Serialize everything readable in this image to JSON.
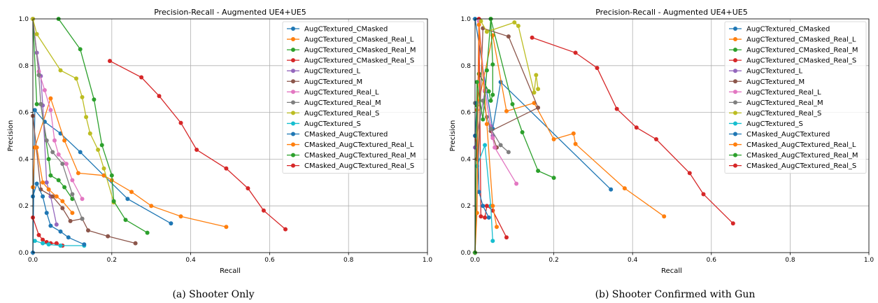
{
  "chart_data": [
    {
      "type": "line",
      "title": "Precision-Recall - Augmented UE4+UE5",
      "xlabel": "Recall",
      "ylabel": "Precision",
      "xlim": [
        0,
        1
      ],
      "ylim": [
        0,
        1
      ],
      "xticks": [
        "0.0",
        "0.2",
        "0.4",
        "0.6",
        "0.8",
        "1.0"
      ],
      "yticks": [
        "0.0",
        "0.2",
        "0.4",
        "0.6",
        "0.8",
        "1.0"
      ],
      "grid": true,
      "legend_position": "top-right",
      "caption": "(a)  Shooter Only",
      "series": [
        {
          "name": "AugCTextured_CMasked",
          "color": "#1f77b4",
          "points": [
            [
              0.0,
              0.0
            ],
            [
              0.005,
              0.61
            ],
            [
              0.03,
              0.56
            ],
            [
              0.07,
              0.51
            ],
            [
              0.12,
              0.43
            ],
            [
              0.18,
              0.33
            ],
            [
              0.24,
              0.23
            ],
            [
              0.35,
              0.125
            ]
          ]
        },
        {
          "name": "AugCTextured_CMasked_Real_L",
          "color": "#ff7f0e",
          "points": [
            [
              0.0,
              0.28
            ],
            [
              0.005,
              0.45
            ],
            [
              0.045,
              0.66
            ],
            [
              0.08,
              0.48
            ],
            [
              0.115,
              0.34
            ],
            [
              0.18,
              0.33
            ],
            [
              0.2,
              0.31
            ],
            [
              0.25,
              0.26
            ],
            [
              0.3,
              0.2
            ],
            [
              0.375,
              0.155
            ],
            [
              0.49,
              0.11
            ]
          ]
        },
        {
          "name": "AugCTextured_CMasked_Real_M",
          "color": "#2ca02c",
          "points": [
            [
              0.0,
              1.0
            ],
            [
              0.01,
              0.635
            ],
            [
              0.02,
              0.635
            ],
            [
              0.04,
              0.4
            ],
            [
              0.045,
              0.33
            ],
            [
              0.065,
              0.31
            ],
            [
              0.08,
              0.28
            ],
            [
              0.1,
              0.23
            ]
          ]
        },
        {
          "name": "AugCTextured_CMasked_Real_S",
          "color": "#d62728",
          "points": [
            [
              0.0,
              0.15
            ],
            [
              0.015,
              0.075
            ],
            [
              0.025,
              0.055
            ],
            [
              0.035,
              0.045
            ],
            [
              0.045,
              0.04
            ],
            [
              0.06,
              0.04
            ],
            [
              0.075,
              0.03
            ]
          ]
        },
        {
          "name": "AugCTextured_L",
          "color": "#9467bd",
          "points": [
            [
              0.0,
              1.0
            ],
            [
              0.01,
              0.855
            ],
            [
              0.02,
              0.755
            ],
            [
              0.025,
              0.63
            ],
            [
              0.035,
              0.3
            ],
            [
              0.045,
              0.24
            ],
            [
              0.06,
              0.12
            ]
          ]
        },
        {
          "name": "AugCTextured_M",
          "color": "#8c564b",
          "points": [
            [
              0.0,
              0.585
            ],
            [
              0.02,
              0.27
            ],
            [
              0.05,
              0.24
            ],
            [
              0.075,
              0.19
            ],
            [
              0.095,
              0.135
            ],
            [
              0.125,
              0.145
            ],
            [
              0.14,
              0.095
            ],
            [
              0.19,
              0.07
            ],
            [
              0.26,
              0.04
            ]
          ]
        },
        {
          "name": "AugCTextured_Real_L",
          "color": "#e377c2",
          "points": [
            [
              0.0,
              1.0
            ],
            [
              0.015,
              0.775
            ],
            [
              0.03,
              0.695
            ],
            [
              0.045,
              0.61
            ],
            [
              0.055,
              0.48
            ],
            [
              0.065,
              0.42
            ],
            [
              0.085,
              0.38
            ],
            [
              0.1,
              0.31
            ],
            [
              0.125,
              0.23
            ]
          ]
        },
        {
          "name": "AugCTextured_Real_M",
          "color": "#7f7f7f",
          "points": [
            [
              0.0,
              1.0
            ],
            [
              0.015,
              0.76
            ],
            [
              0.02,
              0.635
            ],
            [
              0.035,
              0.48
            ],
            [
              0.05,
              0.43
            ],
            [
              0.075,
              0.38
            ],
            [
              0.1,
              0.25
            ],
            [
              0.125,
              0.145
            ]
          ]
        },
        {
          "name": "AugCTextured_Real_S",
          "color": "#bcbd22",
          "points": [
            [
              0.0,
              1.0
            ],
            [
              0.01,
              0.935
            ],
            [
              0.07,
              0.78
            ],
            [
              0.11,
              0.745
            ],
            [
              0.125,
              0.665
            ],
            [
              0.135,
              0.58
            ],
            [
              0.145,
              0.51
            ],
            [
              0.165,
              0.44
            ],
            [
              0.18,
              0.36
            ],
            [
              0.205,
              0.215
            ]
          ]
        },
        {
          "name": "AugCTextured_S",
          "color": "#17becf",
          "points": [
            [
              0.005,
              0.05
            ],
            [
              0.025,
              0.04
            ],
            [
              0.04,
              0.035
            ],
            [
              0.07,
              0.03
            ],
            [
              0.13,
              0.03
            ]
          ]
        },
        {
          "name": "CMasked_AugCTextured",
          "color": "#1f77b4",
          "points": [
            [
              0.0,
              0.24
            ],
            [
              0.01,
              0.295
            ],
            [
              0.025,
              0.24
            ],
            [
              0.035,
              0.17
            ],
            [
              0.045,
              0.115
            ],
            [
              0.07,
              0.09
            ],
            [
              0.09,
              0.065
            ],
            [
              0.13,
              0.035
            ]
          ]
        },
        {
          "name": "CMasked_AugCTextured_Real_L",
          "color": "#ff7f0e",
          "points": [
            [
              0.01,
              0.45
            ],
            [
              0.025,
              0.3
            ],
            [
              0.04,
              0.27
            ],
            [
              0.06,
              0.24
            ],
            [
              0.075,
              0.22
            ],
            [
              0.1,
              0.17
            ]
          ]
        },
        {
          "name": "CMasked_AugCTextured_Real_M",
          "color": "#2ca02c",
          "points": [
            [
              0.065,
              1.0
            ],
            [
              0.12,
              0.87
            ],
            [
              0.155,
              0.655
            ],
            [
              0.175,
              0.46
            ],
            [
              0.2,
              0.33
            ],
            [
              0.205,
              0.22
            ],
            [
              0.235,
              0.14
            ],
            [
              0.29,
              0.085
            ]
          ]
        },
        {
          "name": "CMasked_AugCTextured_Real_S",
          "color": "#d62728",
          "points": [
            [
              0.195,
              0.82
            ],
            [
              0.275,
              0.75
            ],
            [
              0.32,
              0.67
            ],
            [
              0.375,
              0.555
            ],
            [
              0.415,
              0.44
            ],
            [
              0.49,
              0.36
            ],
            [
              0.545,
              0.275
            ],
            [
              0.585,
              0.18
            ],
            [
              0.64,
              0.1
            ]
          ]
        }
      ]
    },
    {
      "type": "line",
      "title": "Precision-Recall - Augmented UE4+UE5",
      "xlabel": "Recall",
      "ylabel": "Precision",
      "xlim": [
        0,
        1
      ],
      "ylim": [
        0,
        1
      ],
      "xticks": [
        "0.0",
        "0.2",
        "0.4",
        "0.6",
        "0.8",
        "1.0"
      ],
      "yticks": [
        "0.0",
        "0.2",
        "0.4",
        "0.6",
        "0.8",
        "1.0"
      ],
      "grid": true,
      "legend_position": "top-right",
      "caption": "(b)  Shooter Confirmed with Gun",
      "series": [
        {
          "name": "AugCTextured_CMasked",
          "color": "#1f77b4",
          "points": [
            [
              0.0,
              1.0
            ],
            [
              0.045,
              0.53
            ],
            [
              0.065,
              0.73
            ],
            [
              0.345,
              0.27
            ]
          ]
        },
        {
          "name": "AugCTextured_CMasked_Real_L",
          "color": "#ff7f0e",
          "points": [
            [
              0.0,
              0.0
            ],
            [
              0.005,
              0.61
            ],
            [
              0.045,
              0.93
            ],
            [
              0.08,
              0.605
            ],
            [
              0.15,
              0.64
            ],
            [
              0.2,
              0.485
            ],
            [
              0.25,
              0.51
            ],
            [
              0.255,
              0.465
            ],
            [
              0.38,
              0.275
            ],
            [
              0.48,
              0.155
            ]
          ]
        },
        {
          "name": "AugCTextured_CMasked_Real_M",
          "color": "#2ca02c",
          "points": [
            [
              0.005,
              0.63
            ],
            [
              0.01,
              0.765
            ],
            [
              0.035,
              0.69
            ],
            [
              0.04,
              0.65
            ],
            [
              0.045,
              0.675
            ],
            [
              0.045,
              0.805
            ],
            [
              0.04,
              1.0
            ],
            [
              0.095,
              0.635
            ],
            [
              0.12,
              0.515
            ],
            [
              0.16,
              0.35
            ],
            [
              0.2,
              0.32
            ]
          ]
        },
        {
          "name": "AugCTextured_CMasked_Real_S",
          "color": "#d62728",
          "points": [
            [
              0.0,
              0.5
            ],
            [
              0.005,
              0.4
            ],
            [
              0.01,
              1.0
            ],
            [
              0.015,
              0.155
            ],
            [
              0.025,
              0.15
            ],
            [
              0.03,
              0.2
            ],
            [
              0.045,
              0.18
            ],
            [
              0.08,
              0.065
            ]
          ]
        },
        {
          "name": "AugCTextured_L",
          "color": "#9467bd",
          "points": [
            [
              0.0,
              0.45
            ],
            [
              0.025,
              0.69
            ],
            [
              0.04,
              0.54
            ],
            [
              0.045,
              0.5
            ]
          ]
        },
        {
          "name": "AugCTextured_M",
          "color": "#8c564b",
          "points": [
            [
              0.0,
              0.0
            ],
            [
              0.02,
              0.96
            ],
            [
              0.085,
              0.925
            ],
            [
              0.16,
              0.62
            ],
            [
              0.04,
              0.52
            ],
            [
              0.055,
              0.45
            ]
          ]
        },
        {
          "name": "AugCTextured_Real_L",
          "color": "#e377c2",
          "points": [
            [
              0.01,
              0.99
            ],
            [
              0.025,
              0.695
            ],
            [
              0.045,
              0.49
            ],
            [
              0.05,
              0.45
            ],
            [
              0.105,
              0.295
            ]
          ]
        },
        {
          "name": "AugCTextured_Real_M",
          "color": "#7f7f7f",
          "points": [
            [
              0.0,
              0.64
            ],
            [
              0.02,
              0.65
            ],
            [
              0.03,
              0.58
            ],
            [
              0.04,
              0.53
            ],
            [
              0.065,
              0.46
            ],
            [
              0.085,
              0.43
            ]
          ]
        },
        {
          "name": "AugCTextured_Real_S",
          "color": "#bcbd22",
          "points": [
            [
              0.015,
              0.99
            ],
            [
              0.03,
              0.945
            ],
            [
              0.1,
              0.985
            ],
            [
              0.11,
              0.97
            ],
            [
              0.15,
              0.685
            ],
            [
              0.155,
              0.76
            ],
            [
              0.16,
              0.7
            ]
          ]
        },
        {
          "name": "AugCTextured_S",
          "color": "#17becf",
          "points": [
            [
              0.005,
              0.37
            ],
            [
              0.025,
              0.46
            ],
            [
              0.04,
              0.2
            ],
            [
              0.045,
              0.05
            ]
          ]
        },
        {
          "name": "CMasked_AugCTextured",
          "color": "#1f77b4",
          "points": [
            [
              0.0,
              0.5
            ],
            [
              0.005,
              0.64
            ],
            [
              0.01,
              0.26
            ],
            [
              0.02,
              0.2
            ],
            [
              0.035,
              0.15
            ]
          ]
        },
        {
          "name": "CMasked_AugCTextured_Real_L",
          "color": "#ff7f0e",
          "points": [
            [
              0.0,
              0.0
            ],
            [
              0.005,
              0.17
            ],
            [
              0.01,
              0.975
            ],
            [
              0.03,
              0.55
            ],
            [
              0.045,
              0.2
            ],
            [
              0.055,
              0.11
            ]
          ]
        },
        {
          "name": "CMasked_AugCTextured_Real_M",
          "color": "#2ca02c",
          "points": [
            [
              0.0,
              0.0
            ],
            [
              0.005,
              0.73
            ],
            [
              0.02,
              0.57
            ],
            [
              0.03,
              0.78
            ],
            [
              0.04,
              1.0
            ]
          ]
        },
        {
          "name": "CMasked_AugCTextured_Real_S",
          "color": "#d62728",
          "points": [
            [
              0.145,
              0.92
            ],
            [
              0.255,
              0.855
            ],
            [
              0.31,
              0.79
            ],
            [
              0.36,
              0.615
            ],
            [
              0.41,
              0.535
            ],
            [
              0.46,
              0.485
            ],
            [
              0.545,
              0.34
            ],
            [
              0.58,
              0.25
            ],
            [
              0.655,
              0.125
            ]
          ]
        }
      ]
    }
  ]
}
